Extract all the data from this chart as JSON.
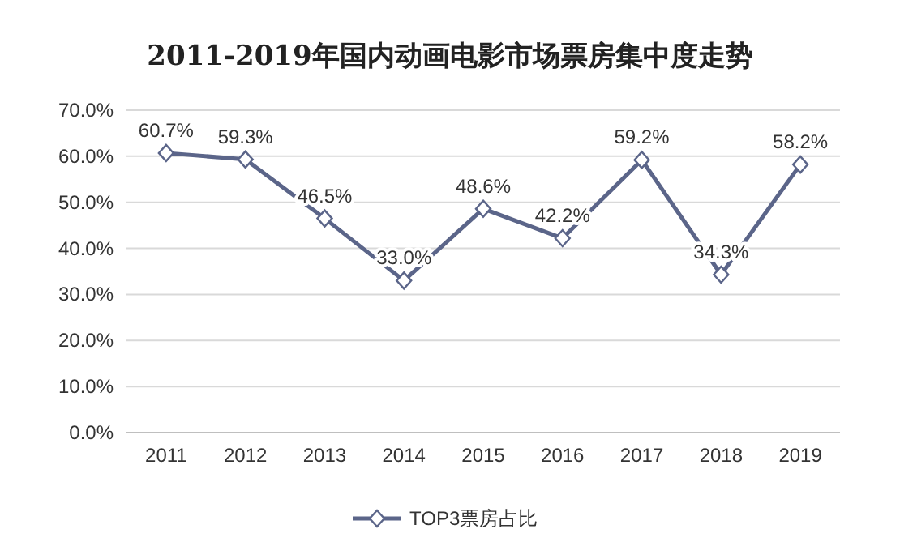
{
  "chart_data": {
    "type": "line",
    "title": "2011-2019年国内动画电影市场票房集中度走势",
    "categories": [
      "2011",
      "2012",
      "2013",
      "2014",
      "2015",
      "2016",
      "2017",
      "2018",
      "2019"
    ],
    "series": [
      {
        "name": "TOP3票房占比",
        "color": "#5b6589",
        "values": [
          60.7,
          59.3,
          46.5,
          33.0,
          48.6,
          42.2,
          59.2,
          34.3,
          58.2
        ],
        "value_labels": [
          "60.7%",
          "59.3%",
          "46.5%",
          "33.0%",
          "48.6%",
          "42.2%",
          "59.2%",
          "34.3%",
          "58.2%"
        ]
      }
    ],
    "ylim": [
      0,
      70
    ],
    "yticks": [
      {
        "value": 0,
        "label": "0.0%"
      },
      {
        "value": 10,
        "label": "10.0%"
      },
      {
        "value": 20,
        "label": "20.0%"
      },
      {
        "value": 30,
        "label": "30.0%"
      },
      {
        "value": 40,
        "label": "40.0%"
      },
      {
        "value": 50,
        "label": "50.0%"
      },
      {
        "value": 60,
        "label": "60.0%"
      },
      {
        "value": 70,
        "label": "70.0%"
      }
    ],
    "grid": "y",
    "legend": "bottom",
    "marker": "diamond",
    "line_style": "solid"
  }
}
